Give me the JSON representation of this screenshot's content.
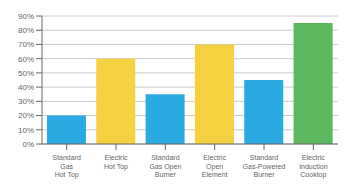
{
  "chart_data": {
    "type": "bar",
    "categories": [
      "Standard\nGas\nHot Top",
      "Electric\nHot Top",
      "Standard\nGas Open\nBurner",
      "Electric\nOpen\nElement",
      "Standard\nGas-Powered\nBurner",
      "Electric\nInduction\nCooktop"
    ],
    "values": [
      20,
      60,
      35,
      70,
      45,
      85
    ],
    "colors": [
      "#29abe2",
      "#f5d040",
      "#29abe2",
      "#f5d040",
      "#29abe2",
      "#5cb85c"
    ],
    "ylim": [
      0,
      90
    ],
    "yticks": [
      {
        "value": 0,
        "label": "0%"
      },
      {
        "value": 10,
        "label": "10%"
      },
      {
        "value": 20,
        "label": "20%"
      },
      {
        "value": 30,
        "label": "30%"
      },
      {
        "value": 40,
        "label": "40%"
      },
      {
        "value": 50,
        "label": "50%"
      },
      {
        "value": 60,
        "label": "60%"
      },
      {
        "value": 70,
        "label": "70%"
      },
      {
        "value": 80,
        "label": "80%"
      },
      {
        "value": 90,
        "label": "90%"
      }
    ],
    "grid": true
  }
}
